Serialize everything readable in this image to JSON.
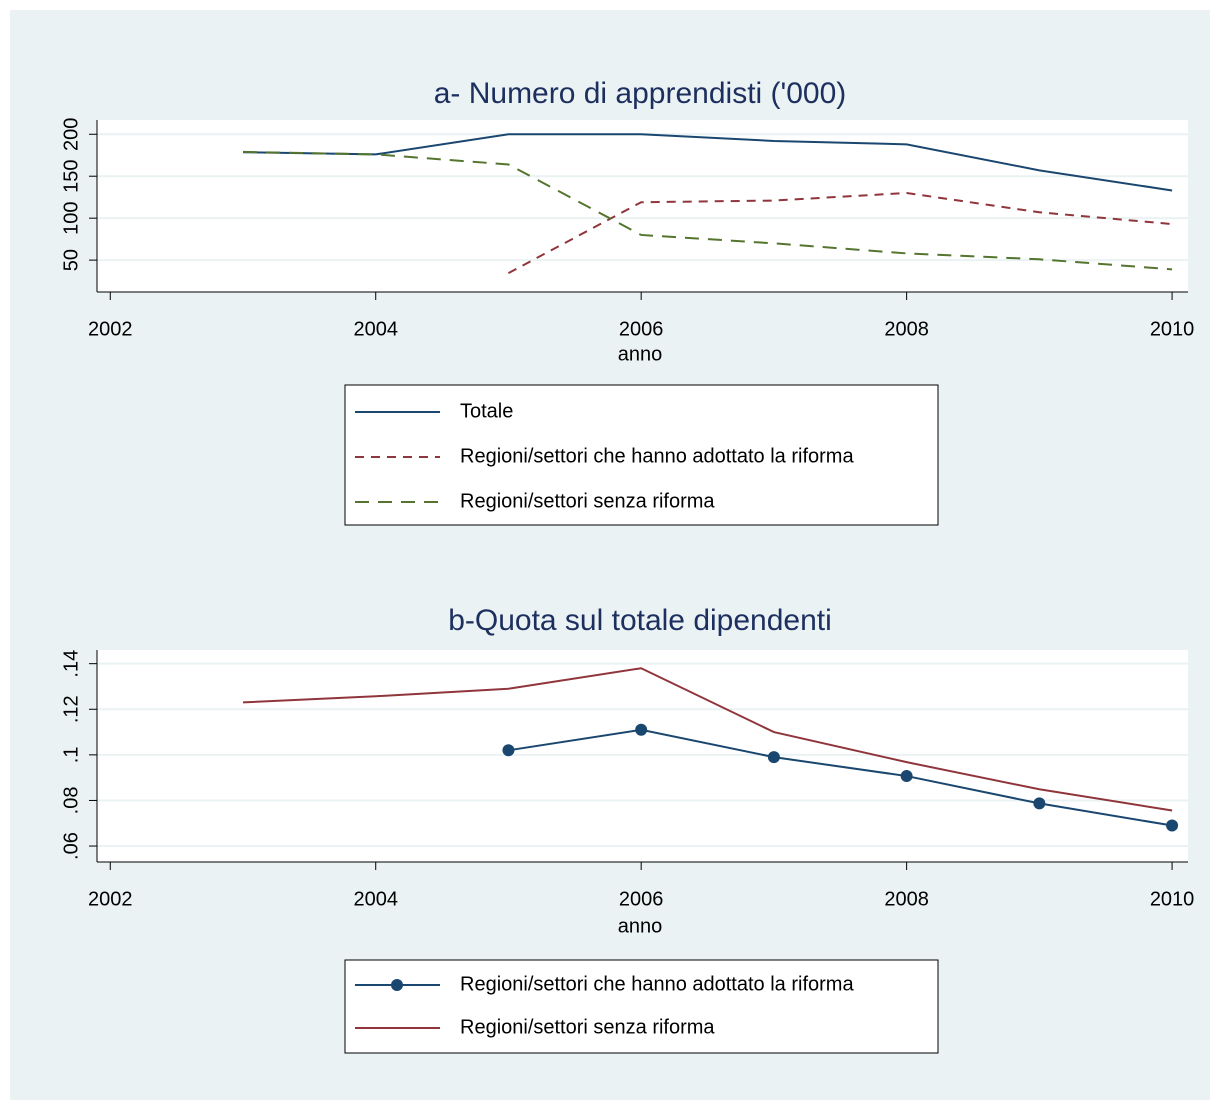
{
  "chart_data": [
    {
      "type": "line",
      "title": "a- Numero di apprendisti ('000)",
      "x_label": "anno",
      "x": [
        2003,
        2004,
        2005,
        2006,
        2007,
        2008,
        2009,
        2010
      ],
      "series": [
        {
          "name": "Totale",
          "color": "#1a476f",
          "line_style": "solid",
          "values": [
            178.6,
            176,
            200,
            200,
            192,
            188,
            157,
            133
          ]
        },
        {
          "name": "Regioni/settori che hanno adottato la riforma",
          "color": "#90353b",
          "line_style": "dashed",
          "values": [
            null,
            null,
            34.5,
            119,
            121,
            130,
            107,
            93
          ]
        },
        {
          "name": "Regioni/settori senza riforma",
          "color": "#55752f",
          "line_style": "longdash",
          "values": [
            179,
            176,
            164,
            80,
            70,
            58,
            51,
            39
          ]
        }
      ],
      "xlim": [
        2001.9,
        2010.12
      ],
      "ylim": [
        12,
        217
      ],
      "xticks": [
        2002,
        2004,
        2006,
        2008,
        2010
      ],
      "yticks": [
        50,
        100,
        150,
        200
      ],
      "grid": true
    },
    {
      "type": "line",
      "title": "b-Quota sul totale dipendenti",
      "x_label": "anno",
      "x": [
        2003,
        2004,
        2005,
        2006,
        2007,
        2008,
        2009,
        2010
      ],
      "series": [
        {
          "name": "Regioni/settori che hanno adottato la riforma",
          "color": "#1a476f",
          "line_style": "solid",
          "marker": "circle",
          "values": [
            null,
            null,
            0.102,
            0.111,
            0.099,
            0.0907,
            0.0787,
            0.069
          ]
        },
        {
          "name": "Regioni/settori senza riforma",
          "color": "#90353b",
          "line_style": "solid",
          "values": [
            0.123,
            0.1257,
            0.129,
            0.138,
            0.11,
            0.0968,
            0.0849,
            0.0756
          ]
        }
      ],
      "xlim": [
        2001.9,
        2010.12
      ],
      "ylim": [
        0.053,
        0.146
      ],
      "xticks": [
        2002,
        2004,
        2006,
        2008,
        2010
      ],
      "yticks": [
        {
          "value": 0.06,
          "label": ".06"
        },
        {
          "value": 0.08,
          "label": ".08"
        },
        {
          "value": 0.1,
          "label": ".1"
        },
        {
          "value": 0.12,
          "label": ".12"
        },
        {
          "value": 0.14,
          "label": ".14"
        }
      ],
      "grid": true
    }
  ]
}
